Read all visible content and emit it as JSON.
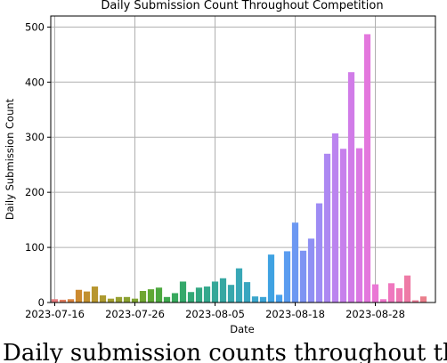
{
  "caption_fragment": "Daily submission counts throughout the course of the",
  "chart_data": {
    "type": "bar",
    "title": "Daily Submission Count Throughout Competition",
    "xlabel": "Date",
    "ylabel": "Daily Submission Count",
    "ylim": [
      0,
      520
    ],
    "yticks": [
      0,
      100,
      200,
      300,
      400,
      500
    ],
    "grid": true,
    "xtick_labels": [
      "2023-07-16",
      "2023-07-26",
      "2023-08-05",
      "2023-08-18",
      "2023-08-28"
    ],
    "xtick_bar_index": [
      0,
      10,
      20,
      30,
      40
    ],
    "categories": [
      "2023-07-16",
      "2023-07-17",
      "2023-07-18",
      "2023-07-19",
      "2023-07-20",
      "2023-07-21",
      "2023-07-22",
      "2023-07-23",
      "2023-07-24",
      "2023-07-25",
      "2023-07-26",
      "2023-07-27",
      "2023-07-28",
      "2023-07-29",
      "2023-07-30",
      "2023-07-31",
      "2023-08-01",
      "2023-08-02",
      "2023-08-03",
      "2023-08-04",
      "2023-08-05",
      "2023-08-06",
      "2023-08-07",
      "2023-08-08",
      "2023-08-09",
      "2023-08-10",
      "2023-08-11",
      "2023-08-12",
      "2023-08-13",
      "2023-08-14",
      "2023-08-18",
      "2023-08-19",
      "2023-08-20",
      "2023-08-21",
      "2023-08-22",
      "2023-08-23",
      "2023-08-24",
      "2023-08-25",
      "2023-08-26",
      "2023-08-27",
      "2023-08-28",
      "2023-08-29",
      "2023-08-30",
      "2023-08-31",
      "2023-09-01",
      "2023-09-02",
      "2023-09-03",
      "2023-09-04"
    ],
    "values": [
      6,
      5,
      6,
      23,
      20,
      29,
      13,
      7,
      10,
      10,
      7,
      21,
      24,
      27,
      10,
      17,
      38,
      19,
      27,
      29,
      38,
      44,
      32,
      62,
      37,
      11,
      10,
      87,
      14,
      93,
      145,
      94,
      116,
      180,
      270,
      307,
      279,
      418,
      280,
      487,
      33,
      6,
      35,
      26,
      49,
      4,
      11,
      0
    ],
    "colors": [
      "#e57a7e",
      "#e07d5f",
      "#d6823f",
      "#cc8a2f",
      "#c2902f",
      "#b8962f",
      "#ad9a30",
      "#a29e31",
      "#969f31",
      "#8aa131",
      "#7ea331",
      "#6fa531",
      "#5ea733",
      "#4ca83f",
      "#3ea84e",
      "#37a85d",
      "#34a86a",
      "#33a876",
      "#33a882",
      "#34a88d",
      "#35a798",
      "#36a7a2",
      "#37a7ac",
      "#38a7b6",
      "#39a6c0",
      "#3aa5cb",
      "#3ca4d6",
      "#3fa2e2",
      "#47a0ec",
      "#5a9cf0",
      "#6c98f2",
      "#7e94f3",
      "#8f90f4",
      "#9e8cf4",
      "#ad88f2",
      "#bb84ef",
      "#c780ec",
      "#d17ce8",
      "#db79e3",
      "#e377dd",
      "#ea76d5",
      "#ee76cb",
      "#ef77bf",
      "#ef79b3",
      "#ee7ba6",
      "#ec7d99",
      "#ea7f8c",
      "#e88080"
    ]
  }
}
